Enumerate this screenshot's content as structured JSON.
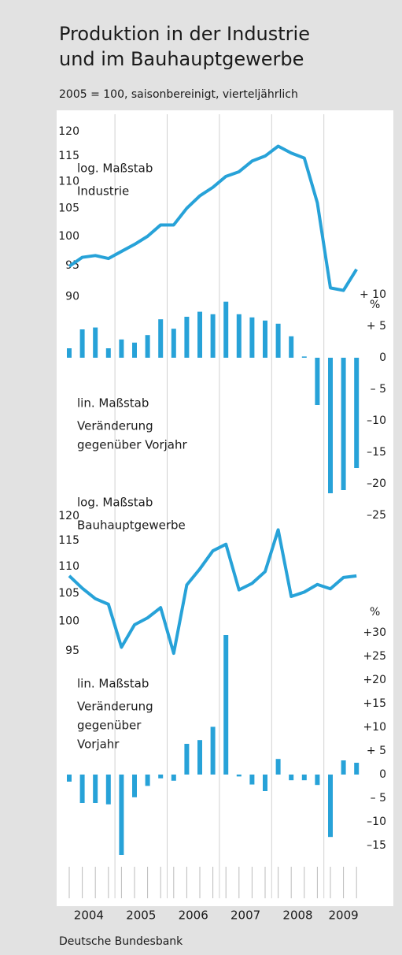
{
  "title": [
    "Produktion in der Industrie",
    "und im Bauhauptgewerbe"
  ],
  "subtitle": "2005 = 100, saisonbereinigt, vierteljährlich",
  "years": [
    "2004",
    "2005",
    "2006",
    "2007",
    "2008",
    "2009"
  ],
  "source": "Deutsche Bundesbank",
  "chart_data": [
    {
      "type": "line",
      "color": "#27a2d8",
      "log_scale": true,
      "annotations": [
        "log. Maßstab",
        "Industrie"
      ],
      "values": [
        94.9,
        96.4,
        96.7,
        96.2,
        97.4,
        98.6,
        100,
        102,
        102,
        105,
        107.3,
        108.9,
        111,
        111.9,
        114,
        115,
        117,
        115.6,
        114.6,
        106,
        91.4,
        91.0,
        94.4
      ],
      "ylim": [
        88,
        122
      ],
      "yticks": [
        90,
        95,
        100,
        105,
        110,
        115,
        120
      ]
    },
    {
      "type": "bar",
      "color": "#27a2d8",
      "unit": "%",
      "annotations": [
        "lin. Maßstab",
        "Veränderung",
        "gegenüber Vorjahr"
      ],
      "values": [
        1.5,
        4.5,
        4.8,
        1.5,
        2.9,
        2.4,
        3.6,
        6.1,
        4.6,
        6.5,
        7.3,
        6.9,
        8.9,
        6.9,
        6.4,
        5.9,
        5.4,
        3.4,
        0.2,
        -7.5,
        -21.5,
        -21,
        -17.5
      ],
      "ylim": [
        -26,
        12
      ],
      "yticks": [
        {
          "value": 10,
          "label": "+ 10"
        },
        {
          "value": 5,
          "label": "+ 5"
        },
        0,
        {
          "value": -5,
          "label": "– 5"
        },
        {
          "value": -10,
          "label": "–10"
        },
        {
          "value": -15,
          "label": "–15"
        },
        {
          "value": -20,
          "label": "–20"
        },
        {
          "value": -25,
          "label": "–25"
        }
      ]
    },
    {
      "type": "line",
      "color": "#27a2d8",
      "log_scale": true,
      "annotations": [
        "log. Maßstab",
        "Bauhauptgewerbe"
      ],
      "values": [
        108.2,
        105.9,
        104.0,
        103.0,
        95.6,
        99.4,
        100.6,
        102.4,
        94.6,
        106.5,
        109.5,
        113,
        114.3,
        105.6,
        106.8,
        109,
        117.2,
        104.4,
        105.2,
        106.6,
        105.8,
        107.9,
        108.2
      ],
      "ylim": [
        93,
        122
      ],
      "yticks": [
        95,
        100,
        105,
        110,
        115,
        120
      ]
    },
    {
      "type": "bar",
      "color": "#27a2d8",
      "unit": "%",
      "annotations": [
        "lin. Maßstab",
        "Veränderung",
        "gegenüber",
        "Vorjahr"
      ],
      "values": [
        -1.5,
        -6,
        -6,
        -6.3,
        -17,
        -4.8,
        -2.4,
        -0.8,
        -1.3,
        6.5,
        7.3,
        10.1,
        29.5,
        -0.4,
        -2.1,
        -3.5,
        3.3,
        -1.2,
        -1.2,
        -2.2,
        -13.2,
        3,
        2.5
      ],
      "ylim": [
        -16,
        32
      ],
      "yticks": [
        {
          "value": 30,
          "label": "+30"
        },
        {
          "value": 25,
          "label": "+25"
        },
        {
          "value": 20,
          "label": "+20"
        },
        {
          "value": 15,
          "label": "+15"
        },
        {
          "value": 10,
          "label": "+10"
        },
        {
          "value": 5,
          "label": "+ 5"
        },
        0,
        {
          "value": -5,
          "label": "– 5"
        },
        {
          "value": -10,
          "label": "–10"
        },
        {
          "value": -15,
          "label": "–15"
        }
      ]
    }
  ]
}
